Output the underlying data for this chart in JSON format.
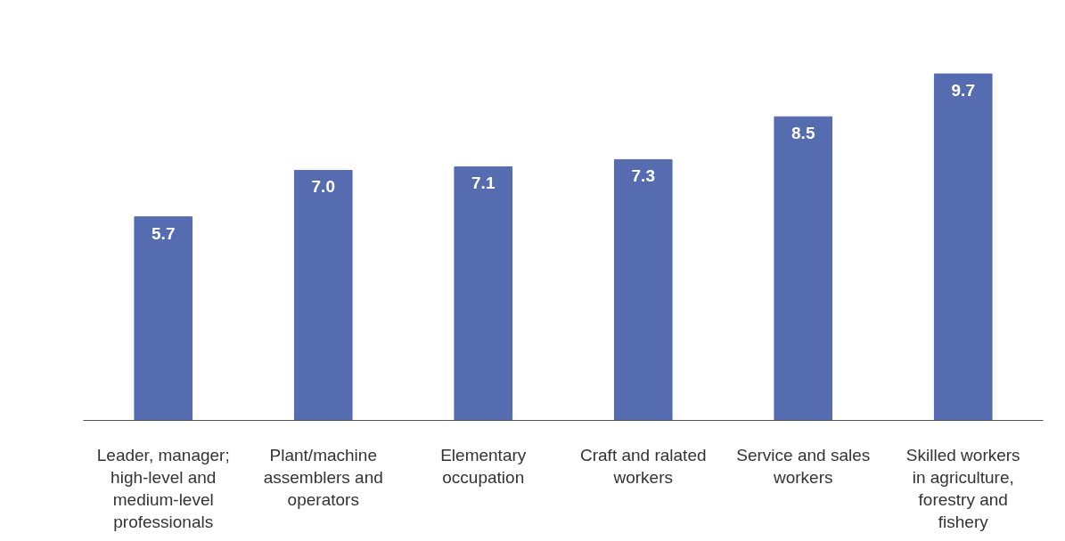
{
  "chart_data": {
    "type": "bar",
    "categories": [
      "Leader, manager; high-level and medium-level professionals",
      "Plant/machine assemblers and operators",
      "Elementary occupation",
      "Craft and ralated workers",
      "Service and sales workers",
      "Skilled workers in agriculture, forestry and fishery"
    ],
    "values": [
      5.7,
      7.0,
      7.1,
      7.3,
      8.5,
      9.7
    ],
    "color": "#566cb0",
    "value_labels": [
      "5.7",
      "7.0",
      "7.1",
      "7.3",
      "8.5",
      "9.7"
    ],
    "grid": false
  }
}
